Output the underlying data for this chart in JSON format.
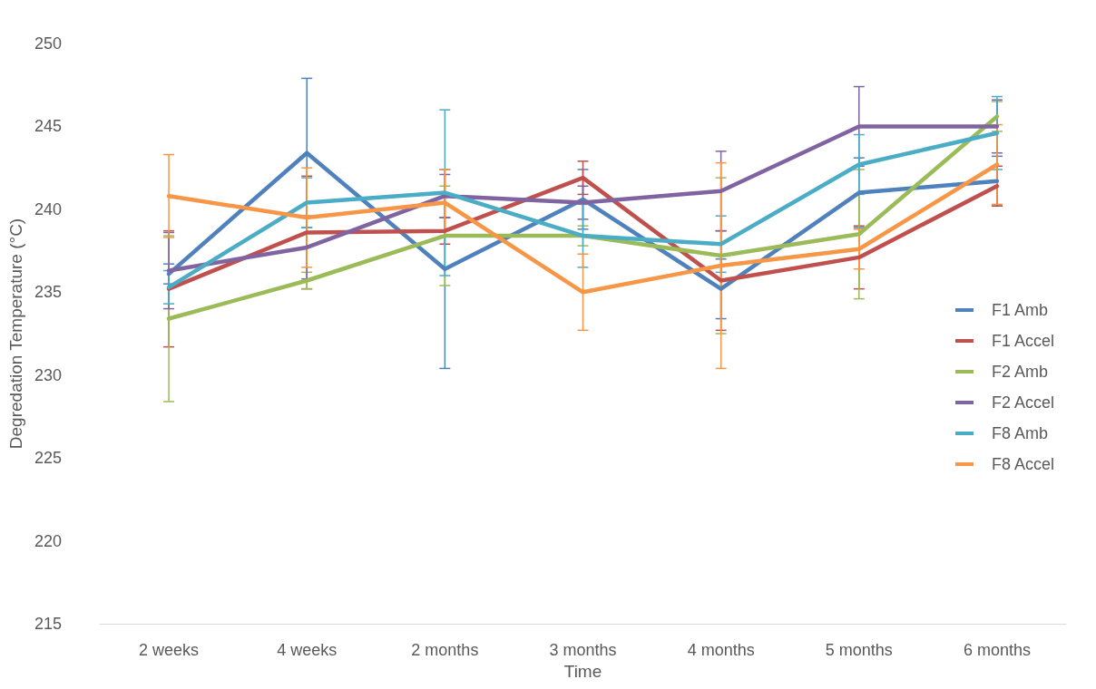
{
  "chart_data": {
    "type": "line",
    "xlabel": "Time",
    "ylabel": "Degredation Temperature (°C)",
    "categories": [
      "2 weeks",
      "4 weeks",
      "2 months",
      "3 months",
      "4 months",
      "5 months",
      "6 months"
    ],
    "series": [
      {
        "name": "F1 Amb",
        "color": "#4f81bd",
        "values": [
          236.1,
          243.4,
          236.4,
          240.6,
          235.2,
          241.0,
          241.7
        ],
        "errors": [
          0.6,
          4.5,
          6.0,
          1.8,
          1.8,
          2.1,
          1.5
        ]
      },
      {
        "name": "F1 Accel",
        "color": "#c0504d",
        "values": [
          235.2,
          238.6,
          238.7,
          241.9,
          235.7,
          237.1,
          241.4
        ],
        "errors": [
          3.5,
          3.4,
          0.8,
          1.0,
          3.0,
          1.9,
          1.2
        ]
      },
      {
        "name": "F2 Amb",
        "color": "#9bbb59",
        "values": [
          233.4,
          235.7,
          238.4,
          238.4,
          237.2,
          238.5,
          245.6
        ],
        "errors": [
          5.0,
          0.5,
          3.0,
          0.6,
          4.7,
          3.9,
          0.9
        ]
      },
      {
        "name": "F2 Accel",
        "color": "#8064a2",
        "values": [
          236.3,
          237.7,
          240.8,
          240.4,
          241.1,
          245.0,
          245.0
        ],
        "errors": [
          2.3,
          1.9,
          1.3,
          1.0,
          2.4,
          2.4,
          1.6
        ]
      },
      {
        "name": "F8 Amb",
        "color": "#4bacc6",
        "values": [
          235.3,
          240.4,
          241.0,
          238.4,
          237.9,
          242.7,
          244.6
        ],
        "errors": [
          1.0,
          1.5,
          5.0,
          1.9,
          1.7,
          1.8,
          2.2
        ]
      },
      {
        "name": "F8 Accel",
        "color": "#f79646",
        "values": [
          240.8,
          239.5,
          240.4,
          235.0,
          236.6,
          237.6,
          242.7
        ],
        "errors": [
          2.5,
          3.0,
          2.0,
          2.3,
          6.2,
          1.2,
          2.4
        ]
      }
    ],
    "ylim": [
      215,
      250
    ],
    "yticks": [
      215,
      220,
      225,
      230,
      235,
      240,
      245,
      250
    ],
    "grid": false,
    "legend": "right",
    "marker": "none",
    "line_style": "solid"
  }
}
